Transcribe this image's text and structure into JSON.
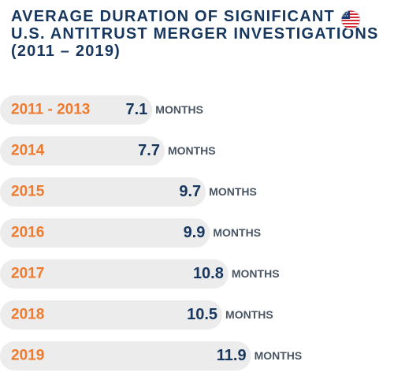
{
  "title": {
    "line1": "AVERAGE DURATION OF SIGNIFICANT",
    "line2": "U.S. ANTITRUST MERGER INVESTIGATIONS",
    "line3": "(2011 – 2019)"
  },
  "flag": {
    "icon": "us-flag-icon"
  },
  "colors": {
    "title": "#17375e",
    "category": "#f07a2b",
    "value": "#17375e",
    "unit": "#4a5563",
    "bar": "#ececec"
  },
  "chart_data": {
    "type": "bar",
    "orientation": "horizontal",
    "title": "AVERAGE DURATION OF SIGNIFICANT U.S. ANTITRUST MERGER INVESTIGATIONS (2011 – 2019)",
    "categories": [
      "2011 - 2013",
      "2014",
      "2015",
      "2016",
      "2017",
      "2018",
      "2019"
    ],
    "values": [
      7.1,
      7.7,
      9.7,
      9.9,
      10.8,
      10.5,
      11.9
    ],
    "value_labels": [
      "7.1",
      "7.7",
      "9.7",
      "9.9",
      "10.8",
      "10.5",
      "11.9"
    ],
    "unit": "MONTHS",
    "xlabel": "",
    "ylabel": "",
    "xlim": [
      0,
      12
    ],
    "grid": false,
    "legend": "none"
  }
}
